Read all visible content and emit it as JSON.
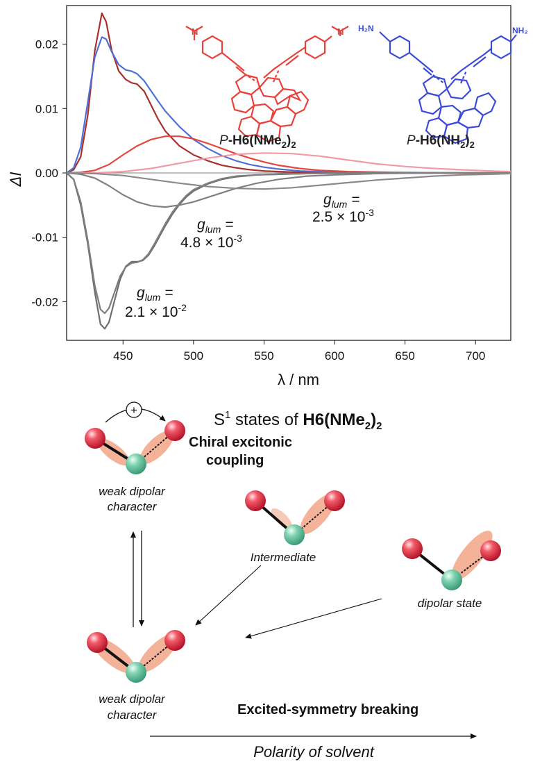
{
  "chart_data": {
    "type": "line",
    "xlabel": "λ / nm",
    "ylabel": "ΔI",
    "xlim": [
      410,
      725
    ],
    "ylim": [
      -0.026,
      0.026
    ],
    "x_ticks": [
      "450",
      "500",
      "550",
      "600",
      "650",
      "700"
    ],
    "x_tick_values": [
      450,
      500,
      550,
      600,
      650,
      700
    ],
    "y_ticks": [
      "0.02",
      "0.01",
      "0.00",
      "-0.01",
      "-0.02"
    ],
    "y_tick_values": [
      0.02,
      0.01,
      0.0,
      -0.01,
      -0.02
    ],
    "grid": false,
    "series": [
      {
        "color": "#a7302b",
        "x": [
          410,
          415,
          420,
          425,
          430,
          435,
          438,
          442,
          447,
          452,
          456,
          460,
          465,
          470,
          475,
          480,
          490,
          500,
          510,
          520,
          530,
          540,
          550,
          560,
          575,
          590,
          610,
          640,
          680,
          725
        ],
        "y": [
          0.0,
          0.0005,
          0.0025,
          0.009,
          0.019,
          0.0248,
          0.0235,
          0.019,
          0.0158,
          0.0145,
          0.014,
          0.0138,
          0.0127,
          0.0105,
          0.0083,
          0.0065,
          0.0042,
          0.0028,
          0.0019,
          0.0012,
          0.0008,
          0.0005,
          0.0003,
          0.0002,
          0.0001,
          0.0001,
          0.0,
          0.0,
          0.0,
          0.0
        ]
      },
      {
        "color": "#4f6fd6",
        "x": [
          410,
          415,
          420,
          425,
          430,
          435,
          438,
          442,
          447,
          452,
          456,
          460,
          465,
          470,
          475,
          480,
          490,
          500,
          510,
          520,
          530,
          540,
          550,
          560,
          575,
          590,
          610,
          640,
          680,
          725
        ],
        "y": [
          0.0,
          0.0008,
          0.004,
          0.011,
          0.018,
          0.0211,
          0.0208,
          0.0188,
          0.0168,
          0.016,
          0.0158,
          0.0154,
          0.0143,
          0.0127,
          0.0111,
          0.0096,
          0.0072,
          0.0052,
          0.0038,
          0.0027,
          0.0019,
          0.0013,
          0.0009,
          0.0006,
          0.0003,
          0.0002,
          0.0001,
          0.0,
          0.0,
          0.0
        ]
      },
      {
        "color": "#e2473f",
        "x": [
          410,
          420,
          430,
          440,
          450,
          460,
          470,
          480,
          490,
          500,
          510,
          520,
          530,
          540,
          550,
          560,
          575,
          590,
          610,
          640,
          680,
          725
        ],
        "y": [
          0.0,
          0.0001,
          0.0004,
          0.0013,
          0.0028,
          0.0042,
          0.0052,
          0.0057,
          0.0057,
          0.0053,
          0.0046,
          0.0038,
          0.003,
          0.0023,
          0.0017,
          0.0012,
          0.0007,
          0.0004,
          0.0002,
          0.0001,
          0.0,
          0.0
        ]
      },
      {
        "color": "#f29aa8",
        "x": [
          410,
          430,
          450,
          470,
          490,
          510,
          530,
          550,
          570,
          590,
          610,
          630,
          650,
          670,
          690,
          710,
          725
        ],
        "y": [
          0.0,
          0.0,
          0.0002,
          0.0007,
          0.0015,
          0.0023,
          0.0029,
          0.0031,
          0.003,
          0.0026,
          0.002,
          0.0014,
          0.001,
          0.0007,
          0.0005,
          0.0003,
          0.0002
        ]
      },
      {
        "color": "#6e6e6e",
        "x": [
          410,
          415,
          420,
          425,
          430,
          434,
          437,
          440,
          444,
          448,
          452,
          456,
          460,
          464,
          468,
          472,
          476,
          480,
          485,
          490,
          495,
          500,
          510,
          520,
          530,
          545,
          560,
          580,
          610,
          650,
          700,
          725
        ],
        "y": [
          0.0,
          -0.001,
          -0.005,
          -0.011,
          -0.0185,
          -0.0235,
          -0.0242,
          -0.0232,
          -0.0198,
          -0.0165,
          -0.0145,
          -0.0138,
          -0.0138,
          -0.0136,
          -0.0128,
          -0.0114,
          -0.0098,
          -0.0082,
          -0.0064,
          -0.0049,
          -0.0037,
          -0.0028,
          -0.0017,
          -0.001,
          -0.0006,
          -0.0003,
          -0.0002,
          -0.0001,
          0.0,
          0.0,
          0.0,
          0.0
        ]
      },
      {
        "color": "#7d7d7d",
        "x": [
          410,
          415,
          420,
          425,
          430,
          434,
          437,
          440,
          444,
          448,
          452,
          456,
          460,
          464,
          468,
          472,
          476,
          480,
          485,
          490,
          495,
          500,
          510,
          520,
          530,
          545,
          560,
          580,
          610,
          650,
          700,
          725
        ],
        "y": [
          0.0,
          -0.001,
          -0.0045,
          -0.0105,
          -0.0175,
          -0.0212,
          -0.0218,
          -0.021,
          -0.0185,
          -0.016,
          -0.0146,
          -0.014,
          -0.0139,
          -0.0135,
          -0.0126,
          -0.0111,
          -0.0095,
          -0.0079,
          -0.0061,
          -0.0047,
          -0.0035,
          -0.0026,
          -0.0016,
          -0.0009,
          -0.0005,
          -0.0003,
          -0.0002,
          -0.0001,
          0.0,
          0.0,
          0.0,
          0.0
        ]
      },
      {
        "color": "#808080",
        "x": [
          410,
          420,
          430,
          440,
          450,
          460,
          470,
          480,
          490,
          500,
          510,
          520,
          530,
          545,
          560,
          580,
          600,
          630,
          660,
          700,
          725
        ],
        "y": [
          0.0,
          -0.0002,
          -0.0008,
          -0.002,
          -0.0034,
          -0.0045,
          -0.0051,
          -0.0053,
          -0.005,
          -0.0045,
          -0.0038,
          -0.0031,
          -0.0024,
          -0.0016,
          -0.001,
          -0.0005,
          -0.0003,
          -0.0001,
          0.0,
          0.0,
          0.0
        ]
      },
      {
        "color": "#8a8a8a",
        "x": [
          410,
          430,
          450,
          470,
          490,
          510,
          530,
          550,
          570,
          590,
          610,
          630,
          650,
          670,
          690,
          710,
          725
        ],
        "y": [
          0.0,
          -0.0001,
          -0.0004,
          -0.001,
          -0.0016,
          -0.0021,
          -0.0024,
          -0.0025,
          -0.0023,
          -0.0019,
          -0.0015,
          -0.0011,
          -0.0008,
          -0.0005,
          -0.0003,
          -0.0002,
          -0.0001
        ]
      }
    ]
  },
  "structures": {
    "left_label_prefix": "P",
    "left_label_main": "-H6(NMe",
    "left_label_sub": "2",
    "left_label_close": ")",
    "left_label_sub2": "2",
    "left_color": "#e8413a",
    "right_label_prefix": "P",
    "right_label_main": "-H6(NH",
    "right_label_sub": "2",
    "right_label_close": ")",
    "right_label_sub2": "2",
    "right_color": "#3b4bd8",
    "right_amine_left": "H₂N",
    "right_amine_right": "NH₂"
  },
  "annotations": [
    {
      "g": "g",
      "sub": "lum",
      "eq": " =",
      "value": "2.5 × 10",
      "exp": "-3"
    },
    {
      "g": "g",
      "sub": "lum",
      "eq": " =",
      "value": "4.8 × 10",
      "exp": "-3"
    },
    {
      "g": "g",
      "sub": "lum",
      "eq": " =",
      "value": "2.1 × 10",
      "exp": "-2"
    }
  ],
  "scheme": {
    "title_a": "S",
    "title_sup": "1",
    "title_b": " states of ",
    "title_c": "H6(NMe",
    "title_sub": "2",
    "title_d": ")",
    "title_sub2": "2",
    "plus": "+",
    "chiral_line1": "Chiral excitonic",
    "chiral_line2": "coupling",
    "state1_line1": "weak dipolar",
    "state1_line2": "character",
    "intermediate": "Intermediate",
    "dipolar_state": "dipolar state",
    "state4_line1": "weak dipolar",
    "state4_line2": "character",
    "esb": "Excited-symmetry breaking",
    "polarity": "Polarity of solvent",
    "colors": {
      "red_ball": "#e8364a",
      "green_ball": "#6cc6a2",
      "glow": "#f2a587"
    }
  }
}
